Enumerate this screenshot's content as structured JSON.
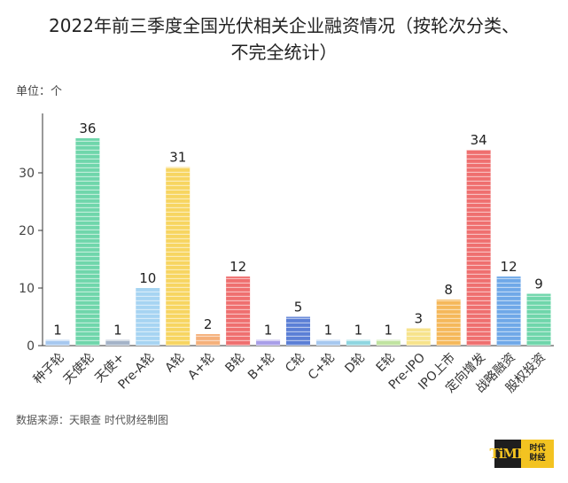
{
  "title_line1": "2022年前三季度全国光伏相关企业融资情况（按轮次分类、",
  "title_line2": "不完全统计）",
  "unit_label": "单位：个",
  "source": "数据来源：天眼查 时代财经制图",
  "logo": {
    "mark": "TiME",
    "text": "时代\n财经",
    "bg": "#1e1e1e",
    "accent": "#f3c321"
  },
  "chart_data": {
    "type": "bar",
    "title": "2022年前三季度全国光伏相关企业融资情况（按轮次分类、不完全统计）",
    "ylabel": "单位：个",
    "ylim": [
      0,
      36
    ],
    "yticks": [
      0,
      10,
      20,
      30
    ],
    "grid": false,
    "categories": [
      "种子轮",
      "天使轮",
      "天使+",
      "Pre-A轮",
      "A轮",
      "A+轮",
      "B轮",
      "B+轮",
      "C轮",
      "C+轮",
      "D轮",
      "E轮",
      "Pre-IPO",
      "IPO上市",
      "定向增发",
      "战略融资",
      "股权投资"
    ],
    "values": [
      1,
      36,
      1,
      10,
      31,
      2,
      12,
      1,
      5,
      1,
      1,
      1,
      3,
      8,
      34,
      12,
      9
    ],
    "colors": [
      "#a6c8ef",
      "#6fd6ab",
      "#a4b3c8",
      "#a6d4f2",
      "#f7d561",
      "#f5b07a",
      "#ef6f6f",
      "#a89ee8",
      "#5b7fd6",
      "#a6c8ef",
      "#8fd6e0",
      "#c0e3a0",
      "#f7e38b",
      "#f5b85a",
      "#ef6f6f",
      "#6fa8e8",
      "#6fd6ab"
    ]
  }
}
